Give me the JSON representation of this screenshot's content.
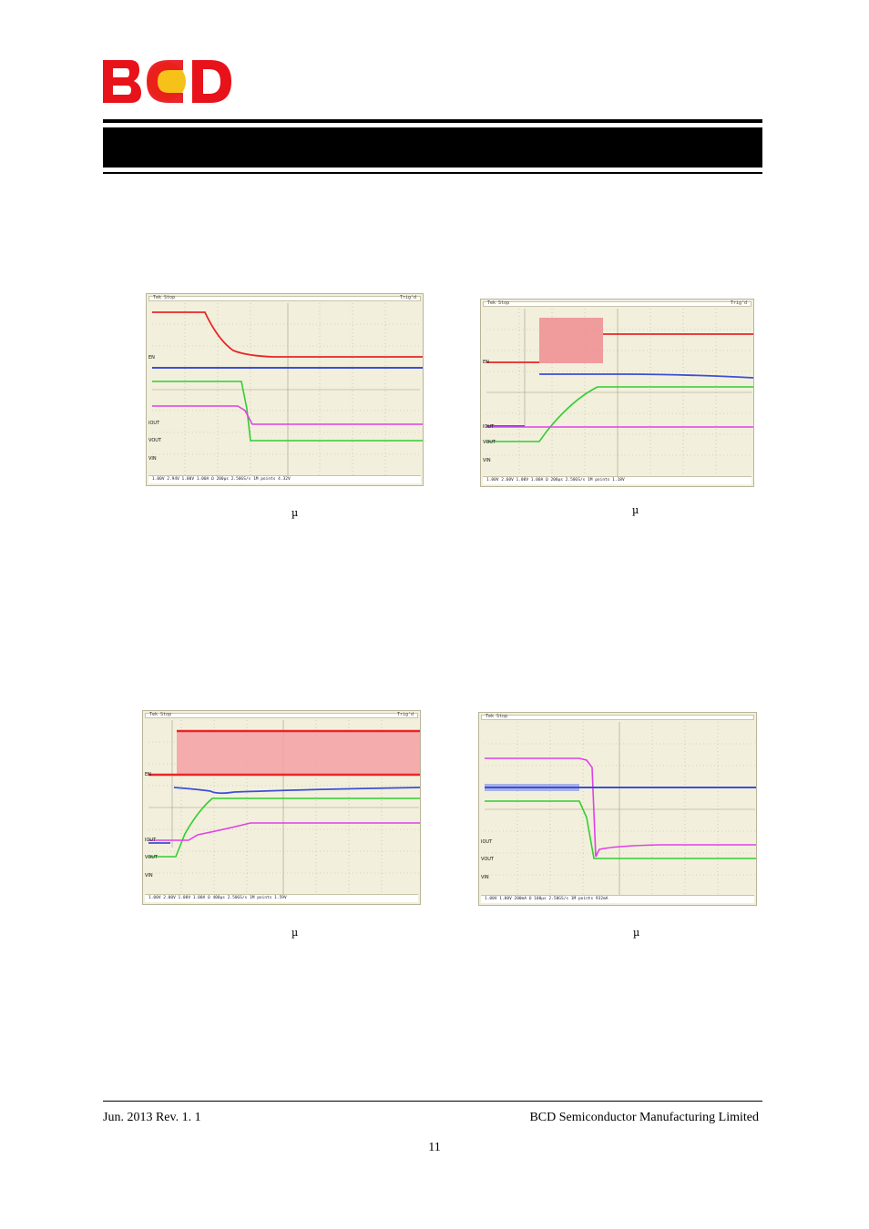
{
  "header": {
    "logo_text": "BCD"
  },
  "scopes": [
    {
      "topbar_left": "Tek Stop",
      "topbar_right": "Trig'd",
      "channel_labels": [
        "EN",
        "IOUT",
        "VOUT",
        "VIN"
      ],
      "bottom_text": "1.00V  2.94V  1.00V  1.00A Ω  200µs 2.50GS/s 1M points  4.32V",
      "mu": "µ"
    },
    {
      "topbar_left": "Tek Stop",
      "topbar_right": "Trig'd",
      "channel_labels": [
        "EN",
        "IOUT",
        "VOUT",
        "VIN"
      ],
      "bottom_text": "1.00V  2.60V  1.00V  1.00A Ω  200µs 2.50GS/s 1M points  1.18V",
      "mu": "µ"
    },
    {
      "topbar_left": "Tek Stop",
      "topbar_right": "Trig'd",
      "channel_labels": [
        "EN",
        "IOUT",
        "VOUT",
        "VIN"
      ],
      "bottom_text": "1.00V  2.00V  1.00V  1.00A Ω  400µs 2.50GS/s 1M points  1.59V",
      "mu": "µ"
    },
    {
      "topbar_left": "Tek Stop",
      "topbar_right": "",
      "channel_labels": [
        "IOUT",
        "VOUT",
        "VIN"
      ],
      "bottom_text": "1.00V  1.00V  200mA Ω  100µs 2.50GS/s 1M points  932mA",
      "mu": "µ"
    }
  ],
  "colors": {
    "red": "#e8262a",
    "blue": "#3b4fd6",
    "green": "#33cc33",
    "magenta": "#e040e8"
  },
  "footer": {
    "left": "Jun. 2013    Rev. 1. 1",
    "right": "BCD Semiconductor Manufacturing Limited",
    "page": "11"
  }
}
